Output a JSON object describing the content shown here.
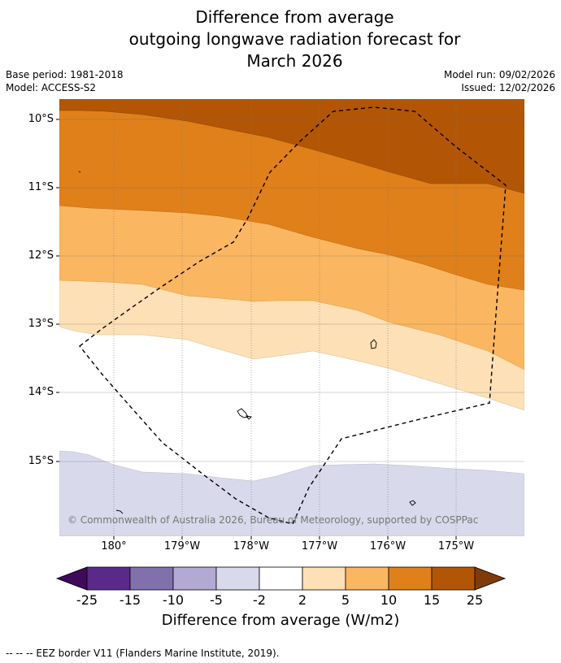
{
  "title": {
    "line1": "Difference from average",
    "line2": "outgoing longwave radiation forecast for",
    "line3": "March 2026"
  },
  "meta": {
    "base_period": "Base period: 1981-2018",
    "model": "Model: ACCESS-S2",
    "model_run": "Model run: 09/02/2026",
    "issued": "Issued: 12/02/2026"
  },
  "axes": {
    "lat_labels": [
      "10°S",
      "11°S",
      "12°S",
      "13°S",
      "14°S",
      "15°S"
    ],
    "lon_labels": [
      "180°",
      "179°W",
      "178°W",
      "177°W",
      "176°W",
      "175°W"
    ]
  },
  "map_text": {
    "copyright": "© Commonwealth of Australia 2026, Bureau of Meteorology, supported by COSPPac"
  },
  "colorbar": {
    "ticks": [
      "-25",
      "-15",
      "-10",
      "-5",
      "-2",
      "2",
      "5",
      "10",
      "15",
      "25"
    ],
    "colors": [
      "#3f0a5a",
      "#5a2a8a",
      "#8070ac",
      "#b2aad2",
      "#d8d9ea",
      "#ffffff",
      "#fde0b6",
      "#fbb661",
      "#e0801a",
      "#b25606",
      "#7f3b08"
    ],
    "label": "Difference from average (W/m2)"
  },
  "legend": {
    "eez": "--  --  -- EEZ border V11 (Flanders Marine Institute, 2019)."
  }
}
